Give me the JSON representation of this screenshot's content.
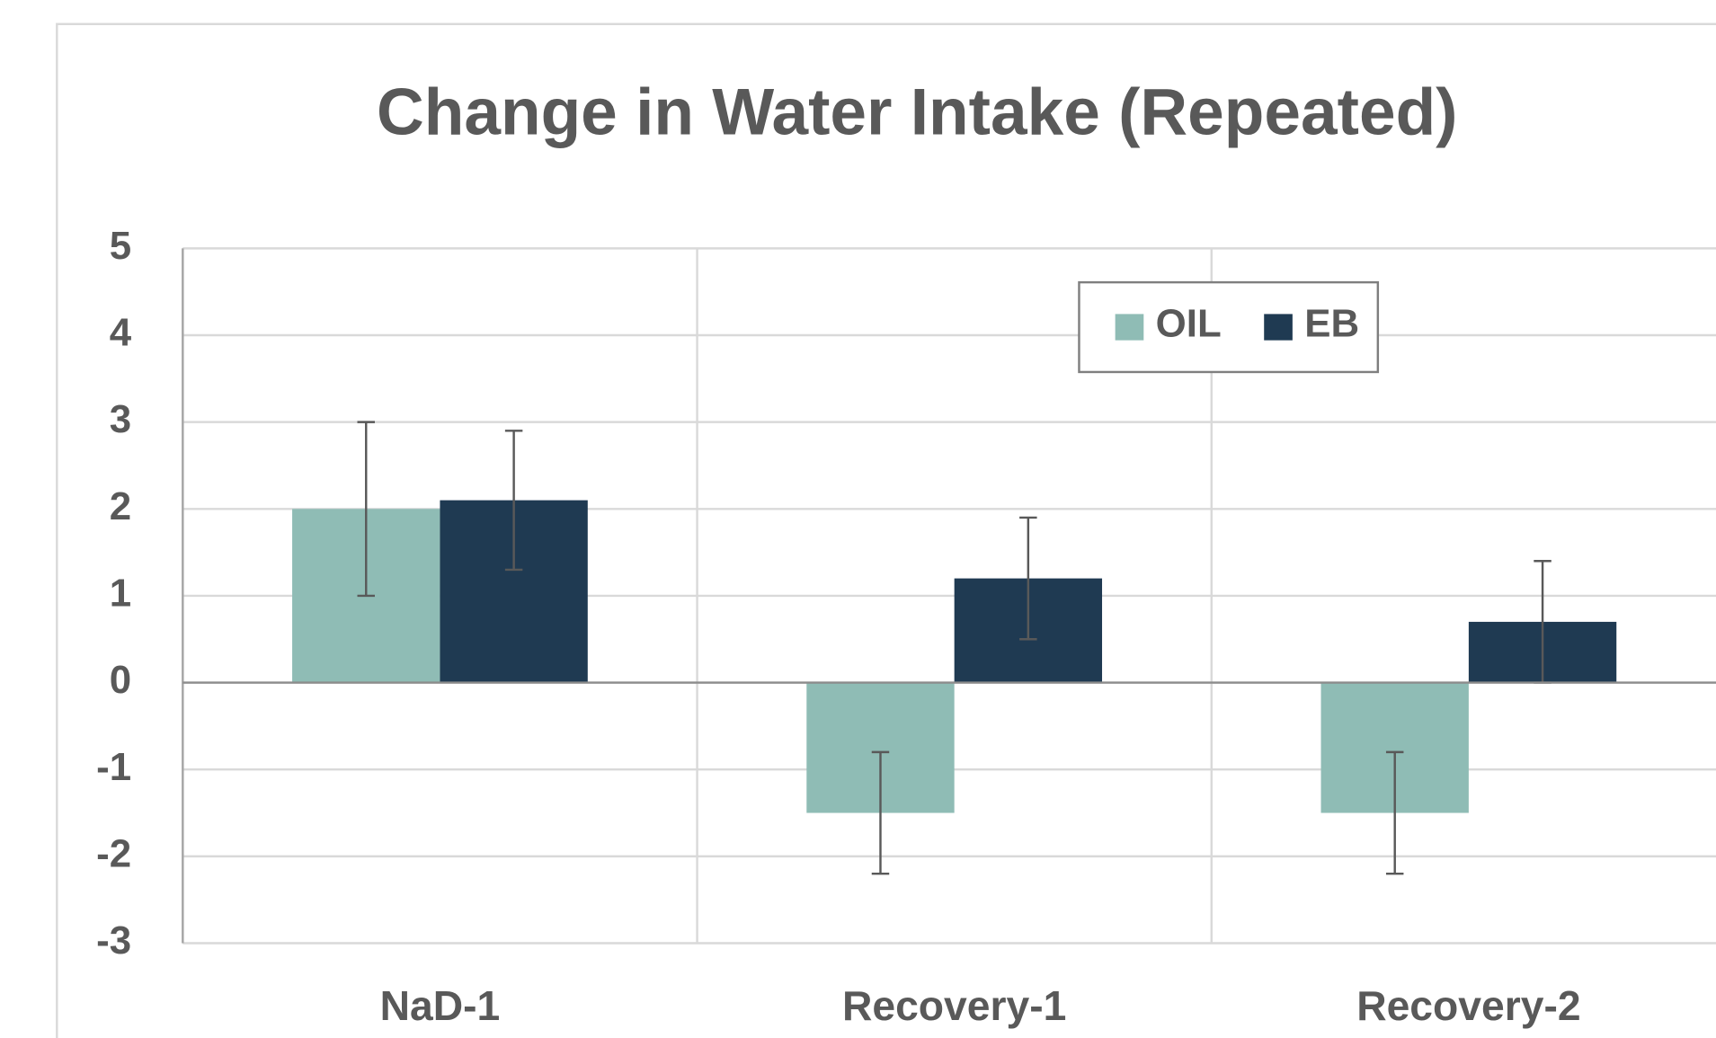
{
  "chart_data": {
    "type": "bar",
    "title": "Change in Water Intake (Repeated)",
    "categories": [
      "NaD-1",
      "Recovery-1",
      "Recovery-2"
    ],
    "series": [
      {
        "name": "OIL",
        "color": "#8fbcb5",
        "values": [
          2,
          -1.5,
          -1.5
        ],
        "errors": [
          1,
          0.7,
          0.7
        ]
      },
      {
        "name": "EB",
        "color": "#1f3a52",
        "values": [
          2.1,
          1.2,
          0.7
        ],
        "errors": [
          0.8,
          0.7,
          0.7
        ]
      }
    ],
    "ylim": [
      -3,
      5
    ],
    "yticks": [
      -3,
      -2,
      -1,
      0,
      1,
      2,
      3,
      4,
      5
    ],
    "grid": true,
    "legend": "top-right"
  }
}
